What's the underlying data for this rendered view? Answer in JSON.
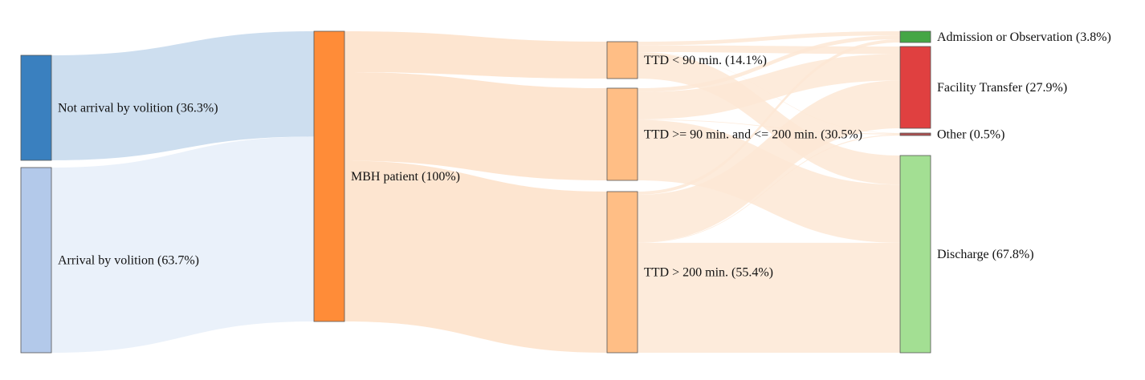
{
  "nodes": [
    {
      "id": "not_arrival",
      "label": "Not arrival by volition (36.3%)",
      "value": 36.3,
      "color": "#3a80bf"
    },
    {
      "id": "arrival",
      "label": "Arrival by volition (63.7%)",
      "value": 63.7,
      "color": "#b3c9ea"
    },
    {
      "id": "mbh",
      "label": "MBH patient (100%)",
      "value": 100,
      "color": "#ff8c38"
    },
    {
      "id": "ttd_lt90",
      "label": "TTD < 90 min. (14.1%)",
      "value": 14.1,
      "color": "#ffbe85"
    },
    {
      "id": "ttd_90_200",
      "label": "TTD >= 90 min. and <= 200 min. (30.5%)",
      "value": 30.5,
      "color": "#ffbe85"
    },
    {
      "id": "ttd_gt200",
      "label": "TTD > 200 min. (55.4%)",
      "value": 55.4,
      "color": "#ffbe85"
    },
    {
      "id": "admission",
      "label": "Admission or Observation (3.8%)",
      "value": 3.8,
      "color": "#45a645"
    },
    {
      "id": "transfer",
      "label": "Facility Transfer (27.9%)",
      "value": 27.9,
      "color": "#e04040"
    },
    {
      "id": "other",
      "label": "Other (0.5%)",
      "value": 0.5,
      "color": "#b05050"
    },
    {
      "id": "discharge",
      "label": "Discharge (67.8%)",
      "value": 67.8,
      "color": "#a3df93"
    }
  ],
  "links": [
    {
      "source": "not_arrival",
      "target": "mbh",
      "value": 36.3,
      "color": "#c4d8ec"
    },
    {
      "source": "arrival",
      "target": "mbh",
      "value": 63.7,
      "color": "#e6eef9"
    },
    {
      "source": "mbh",
      "target": "ttd_lt90",
      "value": 14.1,
      "color": "#fde0c8"
    },
    {
      "source": "mbh",
      "target": "ttd_90_200",
      "value": 30.5,
      "color": "#fde0c8"
    },
    {
      "source": "mbh",
      "target": "ttd_gt200",
      "value": 55.4,
      "color": "#fde0c8"
    },
    {
      "source": "ttd_lt90",
      "target": "admission",
      "value": 1.4,
      "color": "#fde8d5"
    },
    {
      "source": "ttd_lt90",
      "target": "transfer",
      "value": 2.6,
      "color": "#fde8d5"
    },
    {
      "source": "ttd_lt90",
      "target": "other",
      "value": 0.1,
      "color": "#fde8d5"
    },
    {
      "source": "ttd_lt90",
      "target": "discharge",
      "value": 10.0,
      "color": "#fde8d5"
    },
    {
      "source": "ttd_90_200",
      "target": "admission",
      "value": 1.3,
      "color": "#fde8d5"
    },
    {
      "source": "ttd_90_200",
      "target": "transfer",
      "value": 9.0,
      "color": "#fde8d5"
    },
    {
      "source": "ttd_90_200",
      "target": "other",
      "value": 0.2,
      "color": "#fde8d5"
    },
    {
      "source": "ttd_90_200",
      "target": "discharge",
      "value": 20.0,
      "color": "#fde8d5"
    },
    {
      "source": "ttd_gt200",
      "target": "admission",
      "value": 1.1,
      "color": "#fde8d5"
    },
    {
      "source": "ttd_gt200",
      "target": "transfer",
      "value": 16.3,
      "color": "#fde8d5"
    },
    {
      "source": "ttd_gt200",
      "target": "other",
      "value": 0.2,
      "color": "#fde8d5"
    },
    {
      "source": "ttd_gt200",
      "target": "discharge",
      "value": 37.8,
      "color": "#fde8d5"
    }
  ]
}
